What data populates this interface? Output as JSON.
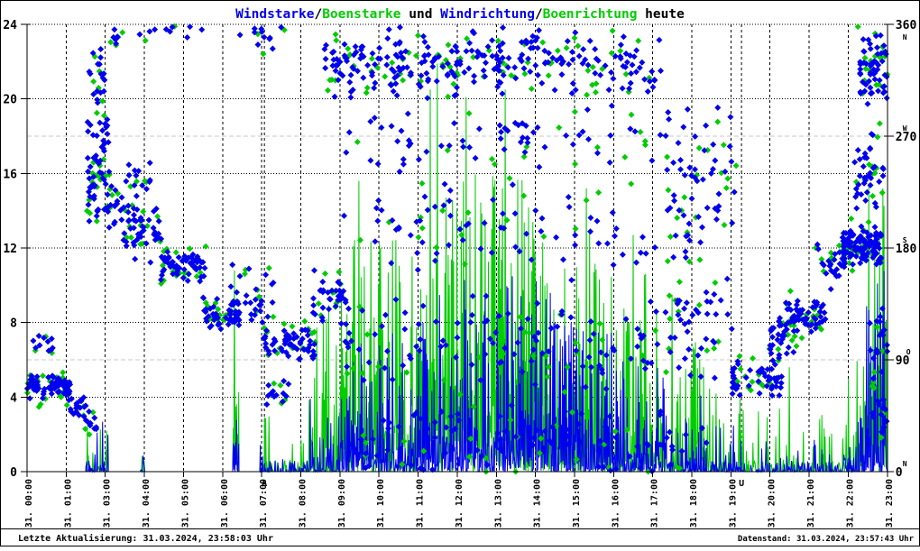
{
  "title": {
    "windstarke": "Windstarke",
    "slash1": "/",
    "boenstarke": "Boenstarke",
    "und": " und ",
    "windrichtung": "Windrichtung",
    "slash2": "/",
    "boenrichtung": "Boenrichtung",
    "heute": " heute"
  },
  "footer": {
    "left": "Letzte Aktualisierung: 31.03.2024, 23:58:03 Uhr",
    "right": "Datenstand: 31.03.2024, 23:57:43 Uhr"
  },
  "colors": {
    "wind": "#0000ee",
    "gust": "#00cc00",
    "grid": "#000000",
    "grid_minor": "#c8c8c8",
    "sun": "#ee0000",
    "background": "#ffffff",
    "frame": "#000000"
  },
  "chart_data": {
    "type": "mixed",
    "title": "Windstarke/Boenstarke und Windrichtung/Boenrichtung heute",
    "seed": 20240331,
    "x_axis": {
      "labels": [
        "31. 00:00",
        "31. 01:00",
        "31. 03:00",
        "31. 04:00",
        "31. 05:00",
        "31. 06:00",
        "31. 07:00",
        "31. 08:00",
        "31. 09:00",
        "31. 10:00",
        "31. 11:00",
        "31. 12:00",
        "31. 13:00",
        "31. 14:00",
        "31. 15:00",
        "31. 16:00",
        "31. 17:00",
        "31. 18:00",
        "31. 19:00",
        "31. 20:00",
        "31. 21:00",
        "31. 22:00",
        "31. 23:00"
      ],
      "slots": 23,
      "grid": "dashed"
    },
    "y_left": {
      "ticks": [
        0,
        4,
        8,
        12,
        16,
        20,
        24
      ],
      "range": [
        0,
        24
      ],
      "grid": "dotted"
    },
    "y_right": {
      "ticks": [
        0,
        90,
        180,
        270,
        360
      ],
      "letters": [
        "N",
        "O",
        "S",
        "W",
        "N"
      ],
      "range": [
        0,
        360
      ],
      "grid_minor_at": [
        90,
        270
      ]
    },
    "sun_markers": [
      {
        "letter": "A",
        "slot": 6.07
      },
      {
        "letter": "U",
        "slot": 18.27
      }
    ],
    "series": [
      {
        "name": "Windstarke",
        "axis": "left",
        "style": "impulse-line",
        "color": "#0000ee",
        "data_key": "speed_segments",
        "value_key": "wind"
      },
      {
        "name": "Boenstarke",
        "axis": "left",
        "style": "impulse-line",
        "color": "#00cc00",
        "data_key": "speed_segments",
        "value_key": "gust"
      },
      {
        "name": "Windrichtung",
        "axis": "right",
        "style": "scatter-diamond",
        "color": "#0000ee",
        "data_key": "direction_clusters",
        "fraction": 1
      },
      {
        "name": "Boenrichtung",
        "axis": "right",
        "style": "scatter-diamond",
        "color": "#00cc00",
        "data_key": "direction_clusters",
        "fraction": 0.3
      }
    ],
    "speed_segments": [
      {
        "t": [
          1.5,
          2.08
        ],
        "wind": [
          0,
          2.8
        ],
        "gust": [
          0,
          3.4
        ],
        "density": 0.55
      },
      {
        "t": [
          2.9,
          3.02
        ],
        "wind": [
          0,
          1.3
        ],
        "gust": [
          0,
          1.7
        ],
        "density": 0.5
      },
      {
        "t": [
          5.26,
          5.42
        ],
        "wind": [
          0,
          3.0
        ],
        "gust": [
          2.0,
          10.8
        ],
        "density": 0.7,
        "gust_peaks": [
          [
            5.3,
            10.8
          ]
        ]
      },
      {
        "t": [
          5.95,
          6.3
        ],
        "wind": [
          0,
          2.3
        ],
        "gust": [
          0,
          3.3
        ],
        "density": 0.5
      },
      {
        "t": [
          6.3,
          7.2
        ],
        "wind": [
          0,
          1.3
        ],
        "gust": [
          0,
          2.1
        ],
        "density": 0.18
      },
      {
        "t": [
          7.2,
          8.0
        ],
        "wind": [
          0,
          5.0
        ],
        "gust": [
          1.0,
          9.0
        ],
        "density": 0.65
      },
      {
        "t": [
          8.0,
          9.0
        ],
        "wind": [
          0,
          7.0
        ],
        "gust": [
          2.0,
          13.0
        ],
        "density": 0.85,
        "gust_peaks": [
          [
            8.49,
            15.6
          ]
        ]
      },
      {
        "t": [
          9.0,
          10.2
        ],
        "wind": [
          0,
          8.0
        ],
        "gust": [
          2.0,
          14.0
        ],
        "density": 0.9
      },
      {
        "t": [
          10.2,
          13.4
        ],
        "wind": [
          0,
          10.5
        ],
        "gust": [
          3.0,
          16.0
        ],
        "density": 0.95,
        "gust_peaks": [
          [
            10.31,
            20.5
          ],
          [
            10.49,
            21.9
          ],
          [
            11.23,
            20.1
          ],
          [
            12.23,
            20.5
          ]
        ]
      },
      {
        "t": [
          13.4,
          15.0
        ],
        "wind": [
          0,
          8.0
        ],
        "gust": [
          2.0,
          13.0
        ],
        "density": 0.9,
        "gust_peaks": [
          [
            14.3,
            15.2
          ]
        ]
      },
      {
        "t": [
          15.0,
          16.3
        ],
        "wind": [
          0,
          6.0
        ],
        "gust": [
          1.5,
          11.0
        ],
        "density": 0.8,
        "gust_peaks": [
          [
            15.5,
            12.7
          ]
        ]
      },
      {
        "t": [
          16.3,
          17.3
        ],
        "wind": [
          0,
          4.5
        ],
        "gust": [
          1.0,
          8.0
        ],
        "density": 0.6,
        "gust_peaks": [
          [
            16.49,
            9.5
          ]
        ]
      },
      {
        "t": [
          17.3,
          18.3
        ],
        "wind": [
          0,
          3.0
        ],
        "gust": [
          0.5,
          6.0
        ],
        "density": 0.4,
        "gust_peaks": [
          [
            17.07,
            5.6
          ]
        ]
      },
      {
        "t": [
          18.3,
          19.2
        ],
        "wind": [
          0,
          2.0
        ],
        "gust": [
          0,
          3.5
        ],
        "density": 0.25
      },
      {
        "t": [
          19.2,
          19.7
        ],
        "wind": [
          0,
          1.5
        ],
        "gust": [
          0,
          5.6
        ],
        "density": 0.35,
        "gust_peaks": [
          [
            19.49,
            5.6
          ]
        ]
      },
      {
        "t": [
          19.7,
          20.85
        ],
        "wind": [
          0,
          2.0
        ],
        "gust": [
          0,
          3.6
        ],
        "density": 0.3
      },
      {
        "t": [
          20.85,
          21.4
        ],
        "wind": [
          0,
          3.5
        ],
        "gust": [
          0.5,
          6.0
        ],
        "density": 0.55,
        "gust_peaks": [
          [
            21.0,
            5.0
          ]
        ]
      },
      {
        "t": [
          21.4,
          22.0
        ],
        "wind": [
          0,
          11.0
        ],
        "gust": [
          3.0,
          15.4
        ],
        "density": 0.92,
        "gust_peaks": [
          [
            21.52,
            15.4
          ],
          [
            21.68,
            12.0
          ],
          [
            21.88,
            15.2
          ]
        ]
      }
    ],
    "direction_clusters": [
      {
        "t": [
          0.0,
          1.1
        ],
        "dir": [
          58,
          80
        ],
        "n": 70
      },
      {
        "t": [
          0.15,
          0.8
        ],
        "dir": [
          92,
          112
        ],
        "n": 10
      },
      {
        "t": [
          1.05,
          1.5
        ],
        "dir": [
          40,
          62
        ],
        "n": 18
      },
      {
        "t": [
          1.45,
          1.8
        ],
        "dir": [
          30,
          52
        ],
        "n": 10
      },
      {
        "t": [
          1.5,
          2.0
        ],
        "dir": [
          295,
          345
        ],
        "n": 16
      },
      {
        "t": [
          1.55,
          2.1
        ],
        "dir": [
          185,
          298
        ],
        "n": 60
      },
      {
        "t": [
          2.05,
          2.6
        ],
        "dir": [
          195,
          235
        ],
        "n": 16
      },
      {
        "t": [
          2.1,
          2.5
        ],
        "dir": [
          340,
          360
        ],
        "n": 6
      },
      {
        "t": [
          2.45,
          3.45
        ],
        "dir": [
          168,
          215
        ],
        "n": 45
      },
      {
        "t": [
          2.6,
          3.2
        ],
        "dir": [
          215,
          252
        ],
        "n": 12
      },
      {
        "t": [
          3.4,
          4.55
        ],
        "dir": [
          152,
          180
        ],
        "n": 60
      },
      {
        "t": [
          4.5,
          5.45
        ],
        "dir": [
          112,
          142
        ],
        "n": 45
      },
      {
        "t": [
          5.2,
          6.3
        ],
        "dir": [
          118,
          168
        ],
        "n": 28
      },
      {
        "t": [
          5.8,
          6.3
        ],
        "dir": [
          338,
          360
        ],
        "n": 8
      },
      {
        "t": [
          6.0,
          7.35
        ],
        "dir": [
          86,
          120
        ],
        "n": 55
      },
      {
        "t": [
          6.1,
          6.7
        ],
        "dir": [
          52,
          80
        ],
        "n": 12
      },
      {
        "t": [
          7.3,
          8.15
        ],
        "dir": [
          118,
          168
        ],
        "n": 32
      },
      {
        "t": [
          7.6,
          9.6
        ],
        "dir": [
          298,
          360
        ],
        "n": 70
      },
      {
        "t": [
          9.5,
          12.1
        ],
        "dir": [
          298,
          360
        ],
        "n": 80
      },
      {
        "t": [
          12.0,
          14.6
        ],
        "dir": [
          298,
          360
        ],
        "n": 65
      },
      {
        "t": [
          14.5,
          16.3
        ],
        "dir": [
          295,
          360
        ],
        "n": 35
      },
      {
        "t": [
          8.0,
          16.2
        ],
        "dir": [
          238,
          298
        ],
        "n": 60
      },
      {
        "t": [
          8.0,
          17.2
        ],
        "dir": [
          148,
          238
        ],
        "n": 80
      },
      {
        "t": [
          7.9,
          17.6
        ],
        "dir": [
          60,
          148
        ],
        "n": 120
      },
      {
        "t": [
          8.2,
          17.6
        ],
        "dir": [
          4,
          60
        ],
        "n": 70
      },
      {
        "t": [
          16.3,
          18.1
        ],
        "dir": [
          168,
          305
        ],
        "n": 45
      },
      {
        "t": [
          16.3,
          18.1
        ],
        "dir": [
          95,
          168
        ],
        "n": 22
      },
      {
        "t": [
          18.0,
          19.3
        ],
        "dir": [
          55,
          95
        ],
        "n": 50
      },
      {
        "t": [
          19.0,
          19.7
        ],
        "dir": [
          92,
          128
        ],
        "n": 28
      },
      {
        "t": [
          19.4,
          20.5
        ],
        "dir": [
          103,
          142
        ],
        "n": 50
      },
      {
        "t": [
          20.2,
          20.9
        ],
        "dir": [
          145,
          188
        ],
        "n": 22
      },
      {
        "t": [
          20.85,
          21.85
        ],
        "dir": [
          162,
          198
        ],
        "n": 110
      },
      {
        "t": [
          21.15,
          21.9
        ],
        "dir": [
          200,
          288
        ],
        "n": 35
      },
      {
        "t": [
          21.3,
          22.0
        ],
        "dir": [
          290,
          360
        ],
        "n": 55
      },
      {
        "t": [
          21.5,
          22.0
        ],
        "dir": [
          5,
          150
        ],
        "n": 30
      },
      {
        "t": [
          2.3,
          7.5
        ],
        "dir": [
          348,
          360
        ],
        "n": 12
      },
      {
        "t": [
          8.0,
          17.0
        ],
        "dir": [
          0,
          8
        ],
        "n": 15
      }
    ]
  }
}
